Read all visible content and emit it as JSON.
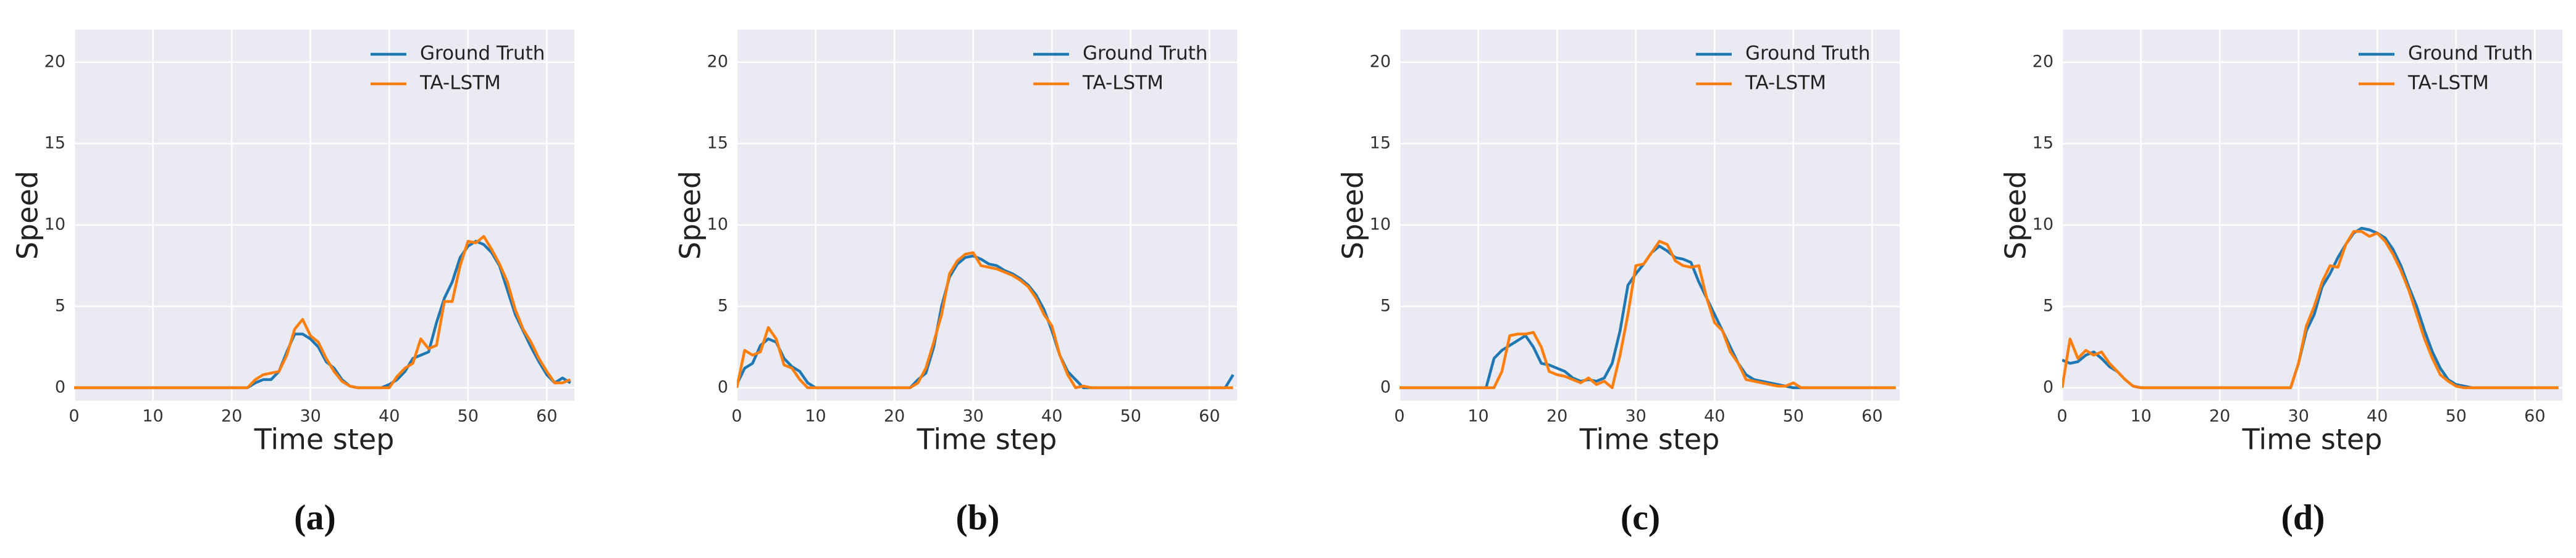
{
  "chart_data": [
    {
      "type": "line",
      "caption": "(a)",
      "xlabel": "Time step",
      "ylabel": "Speed",
      "xlim": [
        0,
        63.5
      ],
      "ylim": [
        -0.8,
        22
      ],
      "xticks": [
        0,
        10,
        20,
        30,
        40,
        50,
        60
      ],
      "yticks": [
        0,
        5,
        10,
        15,
        20
      ],
      "grid": true,
      "legend": "upper right",
      "x": [
        0,
        22,
        23,
        24,
        25,
        26,
        27,
        28,
        29,
        30,
        31,
        32,
        33,
        34,
        35,
        36,
        37,
        38,
        39,
        40,
        41,
        42,
        43,
        44,
        45,
        46,
        47,
        48,
        49,
        50,
        51,
        52,
        53,
        54,
        55,
        56,
        57,
        58,
        59,
        60,
        61,
        62,
        63
      ],
      "series": [
        {
          "name": "Ground Truth",
          "color": "#1f77b4",
          "values": [
            0,
            0,
            0.3,
            0.5,
            0.5,
            1,
            2.2,
            3.3,
            3.3,
            3,
            2.5,
            1.6,
            1.2,
            0.5,
            0.1,
            0,
            0,
            0,
            0,
            0.2,
            0.5,
            1,
            1.8,
            2,
            2.2,
            4,
            5.5,
            6.5,
            8,
            8.7,
            9,
            8.8,
            8.3,
            7.5,
            6,
            4.5,
            3.5,
            2.5,
            1.6,
            0.8,
            0.3,
            0.6,
            0.3
          ]
        },
        {
          "name": "TA-LSTM",
          "color": "#ff7f0e",
          "values": [
            0,
            0,
            0.5,
            0.8,
            0.9,
            1,
            2,
            3.6,
            4.2,
            3.2,
            2.8,
            1.8,
            1,
            0.4,
            0.1,
            0,
            0,
            0,
            0,
            0,
            0.7,
            1.2,
            1.5,
            3,
            2.4,
            2.6,
            5.3,
            5.3,
            7.5,
            9,
            8.9,
            9.3,
            8.5,
            7.6,
            6.5,
            4.8,
            3.6,
            2.8,
            1.8,
            1,
            0.3,
            0.3,
            0.5
          ]
        }
      ]
    },
    {
      "type": "line",
      "caption": "(b)",
      "xlabel": "Time step",
      "ylabel": "Speed",
      "xlim": [
        0,
        63.5
      ],
      "ylim": [
        -0.8,
        22
      ],
      "xticks": [
        0,
        10,
        20,
        30,
        40,
        50,
        60
      ],
      "yticks": [
        0,
        5,
        10,
        15,
        20
      ],
      "grid": true,
      "legend": "upper right",
      "x": [
        0,
        1,
        2,
        3,
        4,
        5,
        6,
        7,
        8,
        9,
        10,
        22,
        23,
        24,
        25,
        26,
        27,
        28,
        29,
        30,
        31,
        32,
        33,
        34,
        35,
        36,
        37,
        38,
        39,
        40,
        41,
        42,
        43,
        44,
        45,
        62,
        63
      ],
      "series": [
        {
          "name": "Ground Truth",
          "color": "#1f77b4",
          "values": [
            0.2,
            1.2,
            1.5,
            2.6,
            3,
            2.8,
            1.8,
            1.3,
            1,
            0.3,
            0,
            0,
            0.5,
            0.9,
            2.5,
            5,
            6.8,
            7.6,
            8,
            8.1,
            7.9,
            7.6,
            7.5,
            7.2,
            7,
            6.7,
            6.3,
            5.7,
            4.8,
            3.5,
            2,
            1,
            0.5,
            0,
            0,
            0,
            0.8
          ]
        },
        {
          "name": "TA-LSTM",
          "color": "#ff7f0e",
          "values": [
            0,
            2.3,
            2,
            2.2,
            3.7,
            3,
            1.4,
            1.2,
            0.5,
            0,
            0,
            0,
            0.3,
            1.2,
            2.8,
            4.5,
            7,
            7.8,
            8.2,
            8.3,
            7.5,
            7.4,
            7.3,
            7.1,
            6.9,
            6.6,
            6.2,
            5.5,
            4.5,
            3.8,
            2,
            0.8,
            0,
            0.1,
            0,
            0,
            0
          ]
        }
      ]
    },
    {
      "type": "line",
      "caption": "(c)",
      "xlabel": "Time step",
      "ylabel": "Speed",
      "xlim": [
        0,
        63.5
      ],
      "ylim": [
        -0.8,
        22
      ],
      "xticks": [
        0,
        10,
        20,
        30,
        40,
        50,
        60
      ],
      "yticks": [
        0,
        5,
        10,
        15,
        20
      ],
      "grid": true,
      "legend": "upper right",
      "x": [
        0,
        11,
        12,
        13,
        14,
        15,
        16,
        17,
        18,
        19,
        20,
        21,
        22,
        23,
        24,
        25,
        26,
        27,
        28,
        29,
        30,
        31,
        32,
        33,
        34,
        35,
        36,
        37,
        38,
        39,
        40,
        41,
        42,
        43,
        44,
        45,
        46,
        47,
        48,
        49,
        50,
        51,
        63
      ],
      "series": [
        {
          "name": "Ground Truth",
          "color": "#1f77b4",
          "values": [
            0,
            0,
            1.8,
            2.3,
            2.6,
            2.9,
            3.2,
            2.5,
            1.5,
            1.4,
            1.2,
            1,
            0.6,
            0.4,
            0.5,
            0.4,
            0.6,
            1.5,
            3.5,
            6.3,
            7,
            7.6,
            8.3,
            8.7,
            8.4,
            8,
            7.9,
            7.7,
            6.5,
            5.5,
            4.5,
            3.5,
            2.5,
            1.5,
            0.8,
            0.5,
            0.4,
            0.3,
            0.2,
            0.1,
            0,
            0,
            0
          ]
        },
        {
          "name": "TA-LSTM",
          "color": "#ff7f0e",
          "values": [
            0,
            0,
            0,
            1,
            3.2,
            3.3,
            3.3,
            3.4,
            2.5,
            1,
            0.8,
            0.7,
            0.5,
            0.3,
            0.6,
            0.2,
            0.4,
            0,
            2,
            4.5,
            7.5,
            7.6,
            8.3,
            9,
            8.8,
            7.8,
            7.5,
            7.4,
            7.5,
            5.5,
            4,
            3.5,
            2.2,
            1.5,
            0.5,
            0.4,
            0.3,
            0.2,
            0.1,
            0.1,
            0.3,
            0,
            0
          ]
        }
      ]
    },
    {
      "type": "line",
      "caption": "(d)",
      "xlabel": "Time step",
      "ylabel": "Speed",
      "xlim": [
        0,
        63.5
      ],
      "ylim": [
        -0.8,
        22
      ],
      "xticks": [
        0,
        10,
        20,
        30,
        40,
        50,
        60
      ],
      "yticks": [
        0,
        5,
        10,
        15,
        20
      ],
      "grid": true,
      "legend": "upper right",
      "x": [
        0,
        1,
        2,
        3,
        4,
        5,
        6,
        7,
        8,
        9,
        10,
        29,
        30,
        31,
        32,
        33,
        34,
        35,
        36,
        37,
        38,
        39,
        40,
        41,
        42,
        43,
        44,
        45,
        46,
        47,
        48,
        49,
        50,
        51,
        52,
        63
      ],
      "series": [
        {
          "name": "Ground Truth",
          "color": "#1f77b4",
          "values": [
            1.7,
            1.5,
            1.6,
            2,
            2.2,
            1.8,
            1.3,
            1,
            0.5,
            0.1,
            0,
            0,
            1.5,
            3.5,
            4.5,
            6.2,
            7,
            8,
            8.8,
            9.5,
            9.8,
            9.7,
            9.5,
            9.2,
            8.5,
            7.5,
            6.2,
            5,
            3.5,
            2.2,
            1.2,
            0.5,
            0.2,
            0.1,
            0,
            0
          ]
        },
        {
          "name": "TA-LSTM",
          "color": "#ff7f0e",
          "values": [
            0,
            3,
            1.8,
            2.3,
            2,
            2.2,
            1.5,
            1,
            0.5,
            0.1,
            0,
            0,
            1.5,
            3.8,
            5,
            6.5,
            7.5,
            7.4,
            8.8,
            9.6,
            9.6,
            9.3,
            9.5,
            9,
            8.2,
            7.2,
            6,
            4.5,
            3,
            1.8,
            0.8,
            0.4,
            0.1,
            0,
            0,
            0
          ]
        }
      ]
    }
  ]
}
